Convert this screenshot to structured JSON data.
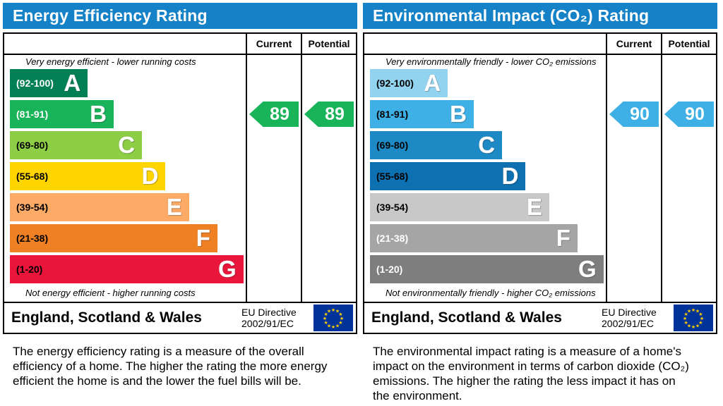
{
  "colors": {
    "header_bg": "#1581c7",
    "table_border": "#000000",
    "flag_blue": "#003399",
    "flag_star": "#ffcc00"
  },
  "panels": [
    {
      "title": "Energy Efficiency Rating",
      "col_current": "Current",
      "col_potential": "Potential",
      "caption_top": "Very energy efficient - lower running costs",
      "caption_bottom": "Not energy efficient - higher running costs",
      "bands": [
        {
          "range": "(92-100)",
          "letter": "A",
          "color": "#008054",
          "width_pct": 33,
          "range_text_color": "#ffffff"
        },
        {
          "range": "(81-91)",
          "letter": "B",
          "color": "#19b459",
          "width_pct": 44,
          "range_text_color": "#ffffff"
        },
        {
          "range": "(69-80)",
          "letter": "C",
          "color": "#8dce46",
          "width_pct": 56,
          "range_text_color": "#000000"
        },
        {
          "range": "(55-68)",
          "letter": "D",
          "color": "#ffd500",
          "width_pct": 66,
          "range_text_color": "#000000"
        },
        {
          "range": "(39-54)",
          "letter": "E",
          "color": "#fcaa65",
          "width_pct": 76,
          "range_text_color": "#000000"
        },
        {
          "range": "(21-38)",
          "letter": "F",
          "color": "#ef8023",
          "width_pct": 88,
          "range_text_color": "#000000"
        },
        {
          "range": "(1-20)",
          "letter": "G",
          "color": "#e9153b",
          "width_pct": 99,
          "range_text_color": "#000000"
        }
      ],
      "current": {
        "value": "89",
        "band_index": 1,
        "color": "#19b459"
      },
      "potential": {
        "value": "89",
        "band_index": 1,
        "color": "#19b459"
      },
      "footer": {
        "region": "England, Scotland & Wales",
        "directive_line1": "EU Directive",
        "directive_line2": "2002/91/EC"
      },
      "description": "The energy efficiency rating is a measure of the overall efficiency of a home. The higher the rating the more energy efficient the home is and the lower the fuel bills will be."
    },
    {
      "title": "Environmental Impact (CO₂) Rating",
      "col_current": "Current",
      "col_potential": "Potential",
      "caption_top": "Very environmentally friendly - lower CO₂ emissions",
      "caption_bottom": "Not environmentally friendly - higher CO₂ emissions",
      "bands": [
        {
          "range": "(92-100)",
          "letter": "A",
          "color": "#92d3f0",
          "width_pct": 33,
          "range_text_color": "#000000"
        },
        {
          "range": "(81-91)",
          "letter": "B",
          "color": "#3fb0e5",
          "width_pct": 44,
          "range_text_color": "#000000"
        },
        {
          "range": "(69-80)",
          "letter": "C",
          "color": "#1d8ac5",
          "width_pct": 56,
          "range_text_color": "#000000"
        },
        {
          "range": "(55-68)",
          "letter": "D",
          "color": "#0d70b0",
          "width_pct": 66,
          "range_text_color": "#000000"
        },
        {
          "range": "(39-54)",
          "letter": "E",
          "color": "#c8c8c8",
          "width_pct": 76,
          "range_text_color": "#000000"
        },
        {
          "range": "(21-38)",
          "letter": "F",
          "color": "#a5a5a5",
          "width_pct": 88,
          "range_text_color": "#ffffff"
        },
        {
          "range": "(1-20)",
          "letter": "G",
          "color": "#7e7e7e",
          "width_pct": 99,
          "range_text_color": "#ffffff"
        }
      ],
      "current": {
        "value": "90",
        "band_index": 1,
        "color": "#3fb0e5"
      },
      "potential": {
        "value": "90",
        "band_index": 1,
        "color": "#3fb0e5"
      },
      "footer": {
        "region": "England, Scotland & Wales",
        "directive_line1": "EU Directive",
        "directive_line2": "2002/91/EC"
      },
      "description": "The environmental impact rating is a measure of a home's impact on the environment in terms of carbon dioxide (CO₂) emissions. The higher the rating the less impact it has on the environment."
    }
  ],
  "chart_data": [
    {
      "type": "bar",
      "title": "Energy Efficiency Rating",
      "categories": [
        "A (92-100)",
        "B (81-91)",
        "C (69-80)",
        "D (55-68)",
        "E (39-54)",
        "F (21-38)",
        "G (1-20)"
      ],
      "band_colors": [
        "#008054",
        "#19b459",
        "#8dce46",
        "#ffd500",
        "#fcaa65",
        "#ef8023",
        "#e9153b"
      ],
      "band_relative_widths_pct": [
        33,
        44,
        56,
        66,
        76,
        88,
        99
      ],
      "current": 89,
      "potential": 89,
      "current_band": "B",
      "potential_band": "B",
      "scale_range": [
        1,
        100
      ],
      "annotations": [
        "Very energy efficient - lower running costs",
        "Not energy efficient - higher running costs"
      ],
      "footer": "England, Scotland & Wales — EU Directive 2002/91/EC"
    },
    {
      "type": "bar",
      "title": "Environmental Impact (CO₂) Rating",
      "categories": [
        "A (92-100)",
        "B (81-91)",
        "C (69-80)",
        "D (55-68)",
        "E (39-54)",
        "F (21-38)",
        "G (1-20)"
      ],
      "band_colors": [
        "#92d3f0",
        "#3fb0e5",
        "#1d8ac5",
        "#0d70b0",
        "#c8c8c8",
        "#a5a5a5",
        "#7e7e7e"
      ],
      "band_relative_widths_pct": [
        33,
        44,
        56,
        66,
        76,
        88,
        99
      ],
      "current": 90,
      "potential": 90,
      "current_band": "B",
      "potential_band": "B",
      "scale_range": [
        1,
        100
      ],
      "annotations": [
        "Very environmentally friendly - lower CO₂ emissions",
        "Not environmentally friendly - higher CO₂ emissions"
      ],
      "footer": "England, Scotland & Wales — EU Directive 2002/91/EC"
    }
  ]
}
